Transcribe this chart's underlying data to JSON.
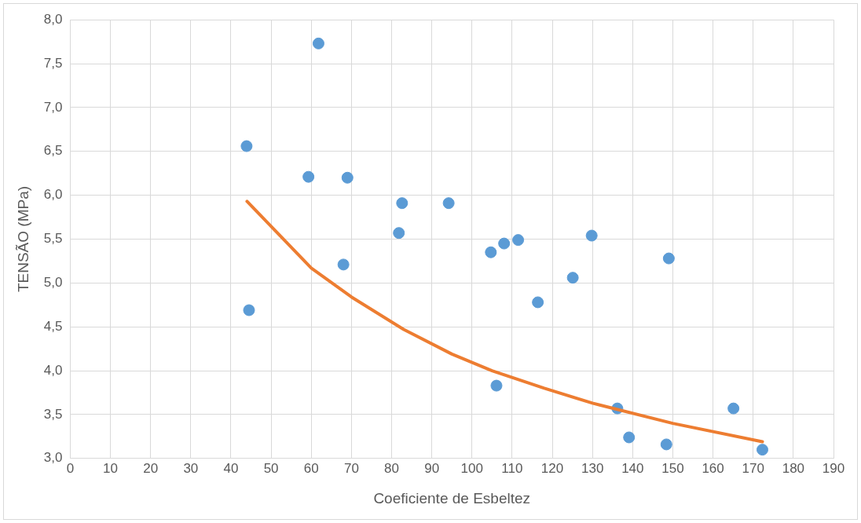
{
  "chart_data": {
    "type": "scatter",
    "xlabel": "Coeficiente de Esbeltez",
    "ylabel": "TENSÃO (MPa)",
    "xlim": [
      0,
      190
    ],
    "xticks": [
      0,
      10,
      20,
      30,
      40,
      50,
      60,
      70,
      80,
      90,
      100,
      110,
      120,
      130,
      140,
      150,
      160,
      170,
      180,
      190
    ],
    "ylim": [
      3,
      8
    ],
    "yticks": [
      {
        "value": 3,
        "label": "3,0"
      },
      {
        "value": 3.5,
        "label": "3,5"
      },
      {
        "value": 4,
        "label": "4,0"
      },
      {
        "value": 4.5,
        "label": "4,5"
      },
      {
        "value": 5,
        "label": "5,0"
      },
      {
        "value": 5.5,
        "label": "5,5"
      },
      {
        "value": 6,
        "label": "6,0"
      },
      {
        "value": 6.5,
        "label": "6,5"
      },
      {
        "value": 7,
        "label": "7,0"
      },
      {
        "value": 7.5,
        "label": "7,5"
      },
      {
        "value": 8,
        "label": "8,0"
      }
    ],
    "grid": true,
    "series": [
      {
        "color": "#5b9bd5",
        "marker": "circle",
        "x": [
          43.9,
          44.5,
          59.3,
          61.8,
          68.0,
          69.0,
          81.8,
          82.6,
          94.2,
          104.7,
          106.1,
          108.0,
          111.5,
          116.4,
          125.1,
          129.8,
          136.2,
          139.1,
          148.4,
          149.0,
          165.1,
          172.3
        ],
        "values": [
          6.56,
          4.69,
          6.21,
          7.73,
          5.21,
          6.2,
          5.57,
          5.91,
          5.91,
          5.35,
          3.83,
          5.45,
          5.49,
          4.78,
          5.06,
          5.54,
          3.57,
          3.24,
          3.16,
          5.28,
          3.57,
          3.1
        ]
      },
      {
        "type": "line",
        "marker": "none",
        "color": "#ed7d31",
        "x": [
          44,
          60,
          70,
          83,
          95,
          105,
          118,
          130,
          150,
          172.3
        ],
        "values": [
          5.93,
          5.17,
          4.84,
          4.47,
          4.19,
          4.0,
          3.8,
          3.63,
          3.4,
          3.19
        ]
      }
    ]
  }
}
